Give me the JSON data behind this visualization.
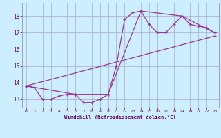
{
  "xlabel": "Windchill (Refroidissement éolien,°C)",
  "bg_color": "#cceeff",
  "grid_color": "#aaaacc",
  "line_color": "#993399",
  "x_ticks": [
    0,
    1,
    2,
    3,
    4,
    5,
    6,
    7,
    8,
    9,
    10,
    11,
    12,
    13,
    14,
    15,
    16,
    17,
    18,
    19,
    20,
    21,
    22,
    23
  ],
  "y_ticks": [
    13,
    14,
    15,
    16,
    17,
    18
  ],
  "xlim": [
    -0.5,
    23.5
  ],
  "ylim": [
    12.5,
    18.8
  ],
  "series1_x": [
    0,
    1,
    2,
    3,
    4,
    5,
    6,
    7,
    8,
    9,
    10,
    11,
    12,
    13,
    14,
    15,
    16,
    17,
    18,
    19,
    20,
    21,
    22,
    23
  ],
  "series1_y": [
    13.8,
    13.7,
    13.0,
    13.0,
    13.2,
    13.3,
    13.3,
    12.8,
    12.8,
    13.0,
    13.3,
    15.0,
    17.8,
    18.2,
    18.3,
    17.5,
    17.0,
    17.0,
    17.5,
    18.0,
    17.5,
    17.4,
    17.3,
    17.0
  ],
  "series2_x": [
    0,
    6,
    10,
    14,
    19,
    23
  ],
  "series2_y": [
    13.8,
    13.3,
    13.3,
    18.3,
    18.0,
    17.0
  ],
  "series3_x": [
    0,
    23
  ],
  "series3_y": [
    13.8,
    16.8
  ]
}
